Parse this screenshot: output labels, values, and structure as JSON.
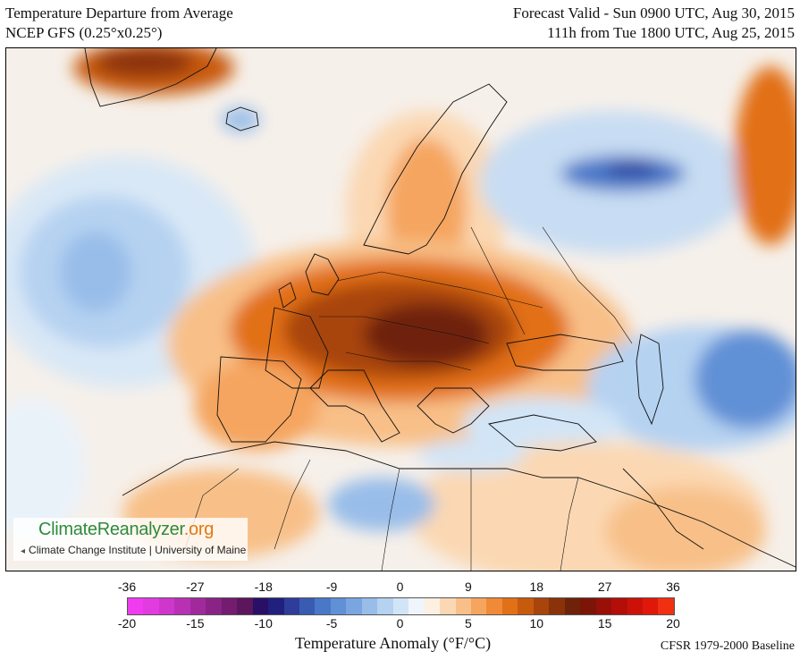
{
  "header": {
    "title_line1": "Temperature Departure from Average",
    "title_line2": "NCEP GFS (0.25°x0.25°)",
    "valid_line1": "Forecast Valid - Sun 0900 UTC, Aug 30, 2015",
    "valid_line2": "111h from Tue 1800 UTC, Aug 25, 2015"
  },
  "logo": {
    "name_main": "ClimateReanalyzer",
    "name_suffix": ".org",
    "institution": "Climate Change Institute | University of Maine"
  },
  "colorbar": {
    "title": "Temperature Anomaly (°F/°C)",
    "baseline": "CFSR 1979-2000 Baseline",
    "fahrenheit_ticks": [
      "-36",
      "-27",
      "-18",
      "-9",
      "0",
      "9",
      "18",
      "27",
      "36"
    ],
    "celsius_ticks": [
      "-20",
      "-15",
      "-10",
      "-5",
      "0",
      "5",
      "10",
      "15",
      "20"
    ],
    "colors": [
      "#f03cf0",
      "#e23ce0",
      "#cf36cc",
      "#b831b4",
      "#a02a9c",
      "#8a2386",
      "#731c70",
      "#5c165c",
      "#2a0f66",
      "#20207e",
      "#2e3d9a",
      "#3a5bb2",
      "#4a78c8",
      "#6090d6",
      "#7aa6e0",
      "#98bde9",
      "#b5d2f1",
      "#d2e5f7",
      "#eef5fb",
      "#fdf0e2",
      "#fbd8b3",
      "#f8c088",
      "#f5a55e",
      "#f08a36",
      "#e27016",
      "#c85a0e",
      "#a8450c",
      "#8a330a",
      "#6e2208",
      "#7c1408",
      "#981008",
      "#b40e08",
      "#cc1208",
      "#e0180a",
      "#f03010"
    ]
  },
  "map": {
    "region": "Europe"
  }
}
